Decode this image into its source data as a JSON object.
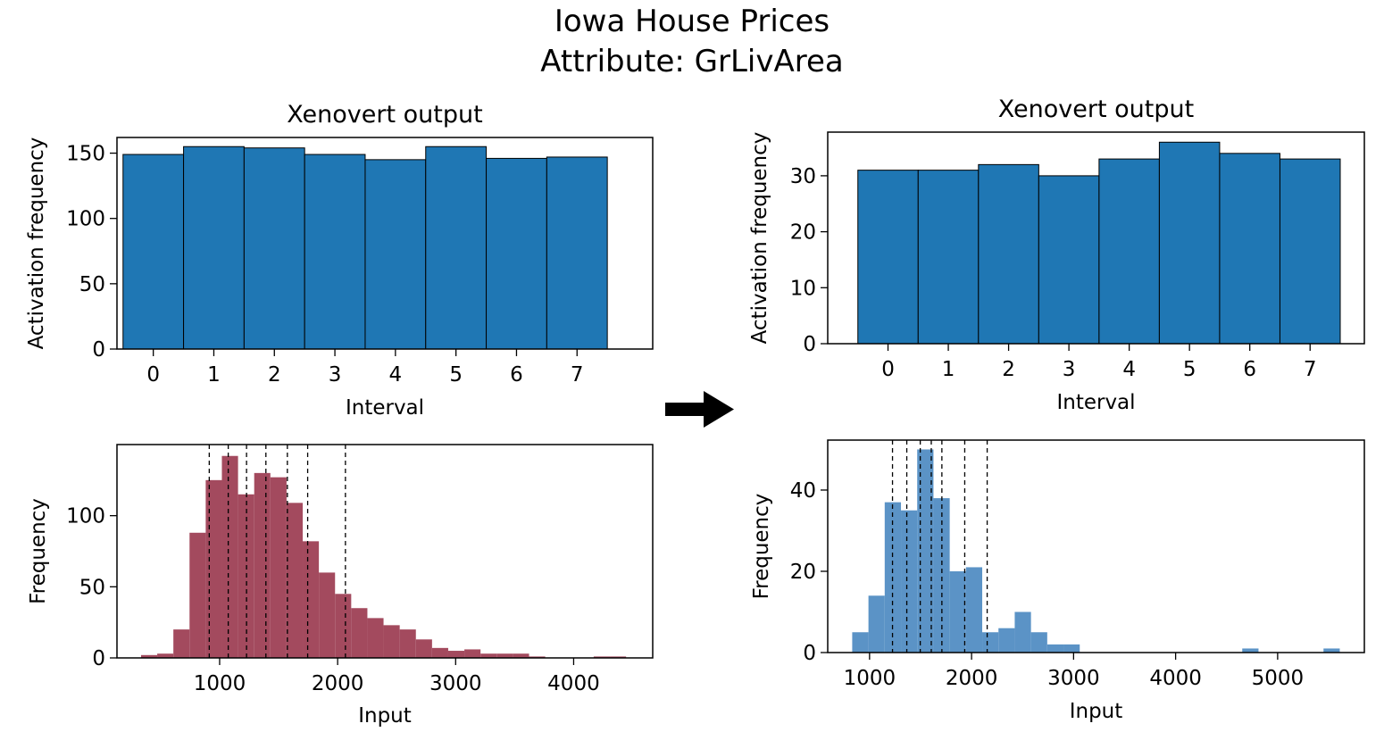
{
  "title": "Iowa House Prices",
  "subtitle": "Attribute: GrLivArea",
  "colors": {
    "output_bar": "#1f77b4",
    "input_left": "#a34a5e",
    "input_right": "#5b93c6",
    "arrow": "#000000"
  },
  "chart_data": [
    {
      "id": "left-output",
      "type": "bar",
      "title": "Xenovert output",
      "xlabel": "Interval",
      "ylabel": "Activation frequency",
      "categories": [
        "0",
        "1",
        "2",
        "3",
        "4",
        "5",
        "6",
        "7"
      ],
      "values": [
        149,
        155,
        154,
        149,
        145,
        155,
        146,
        147
      ],
      "xlim": [
        -0.6,
        8.25
      ],
      "ylim": [
        0,
        162
      ],
      "yticks": [
        0,
        50,
        100,
        150
      ],
      "grid": false
    },
    {
      "id": "left-input",
      "type": "histogram",
      "title": "",
      "xlabel": "Input",
      "ylabel": "Frequency",
      "bin_start": 334,
      "bin_width": 137,
      "values": [
        2,
        3,
        20,
        88,
        125,
        142,
        115,
        130,
        127,
        109,
        82,
        60,
        45,
        35,
        28,
        23,
        20,
        13,
        7,
        5,
        6,
        3,
        3,
        3,
        1,
        0,
        0,
        0,
        1,
        1
      ],
      "thresholds": [
        912,
        1073,
        1228,
        1392,
        1574,
        1746,
        2066
      ],
      "xlim": [
        130,
        4670
      ],
      "ylim": [
        0,
        150
      ],
      "xticks": [
        1000,
        2000,
        3000,
        4000
      ],
      "yticks": [
        0,
        50,
        100
      ],
      "grid": false
    },
    {
      "id": "right-output",
      "type": "bar",
      "title": "Xenovert output",
      "xlabel": "Interval",
      "ylabel": "Activation frequency",
      "categories": [
        "0",
        "1",
        "2",
        "3",
        "4",
        "5",
        "6",
        "7"
      ],
      "values": [
        31,
        31,
        32,
        30,
        33,
        36,
        34,
        33
      ],
      "xlim": [
        -1.0,
        7.9
      ],
      "ylim": [
        0,
        37.8
      ],
      "yticks": [
        0,
        10,
        20,
        30
      ],
      "grid": false
    },
    {
      "id": "right-input",
      "type": "histogram",
      "title": "",
      "xlabel": "Input",
      "ylabel": "Frequency",
      "bin_start": 830,
      "bin_width": 159.3,
      "values": [
        5,
        14,
        37,
        35,
        50,
        38,
        20,
        21,
        5,
        6,
        10,
        5,
        2,
        2,
        0,
        0,
        0,
        0,
        0,
        0,
        0,
        0,
        0,
        0,
        1,
        0,
        0,
        0,
        0,
        1
      ],
      "thresholds": [
        1225,
        1365,
        1497,
        1605,
        1709,
        1933,
        2153
      ],
      "xlim": [
        590,
        5850
      ],
      "ylim": [
        0,
        52.3
      ],
      "xticks": [
        1000,
        2000,
        3000,
        4000,
        5000
      ],
      "yticks": [
        0,
        20,
        40
      ],
      "grid": false
    }
  ]
}
